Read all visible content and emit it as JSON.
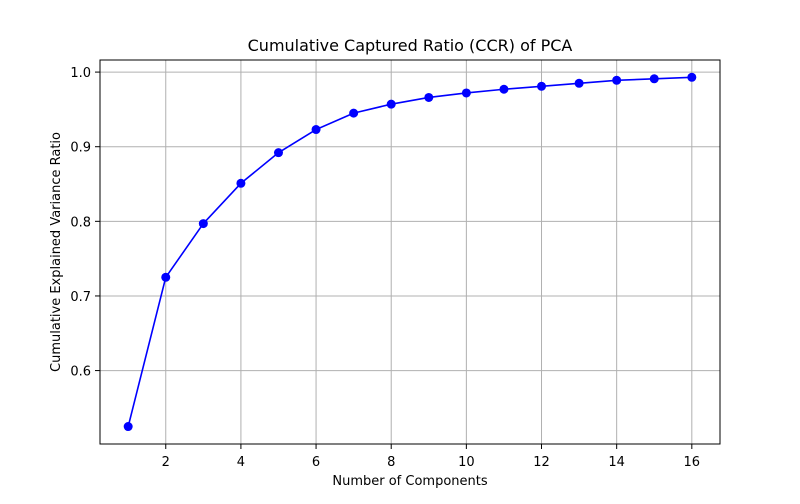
{
  "chart_data": {
    "type": "line",
    "title": "Cumulative Captured Ratio (CCR) of PCA",
    "xlabel": "Number of Components",
    "ylabel": "Cumulative Explained Variance Ratio",
    "x": [
      1,
      2,
      3,
      4,
      5,
      6,
      7,
      8,
      9,
      10,
      11,
      12,
      13,
      14,
      15,
      16
    ],
    "series": [
      {
        "values": [
          0.525,
          0.725,
          0.797,
          0.851,
          0.892,
          0.923,
          0.945,
          0.957,
          0.966,
          0.972,
          0.977,
          0.981,
          0.985,
          0.989,
          0.991,
          0.993
        ],
        "color": "#0000ff",
        "marker": "circle"
      }
    ],
    "xlim": [
      0.25,
      16.75
    ],
    "ylim": [
      0.5016,
      1.0162
    ],
    "xticks": [
      2,
      4,
      6,
      8,
      10,
      12,
      14,
      16
    ],
    "yticks": [
      0.6,
      0.7,
      0.8,
      0.9,
      1.0
    ],
    "xtick_labels": [
      "2",
      "4",
      "6",
      "8",
      "10",
      "12",
      "14",
      "16"
    ],
    "ytick_labels": [
      "0.6",
      "0.7",
      "0.8",
      "0.9",
      "1.0"
    ],
    "grid": true,
    "grid_color": "#b0b0b0"
  }
}
